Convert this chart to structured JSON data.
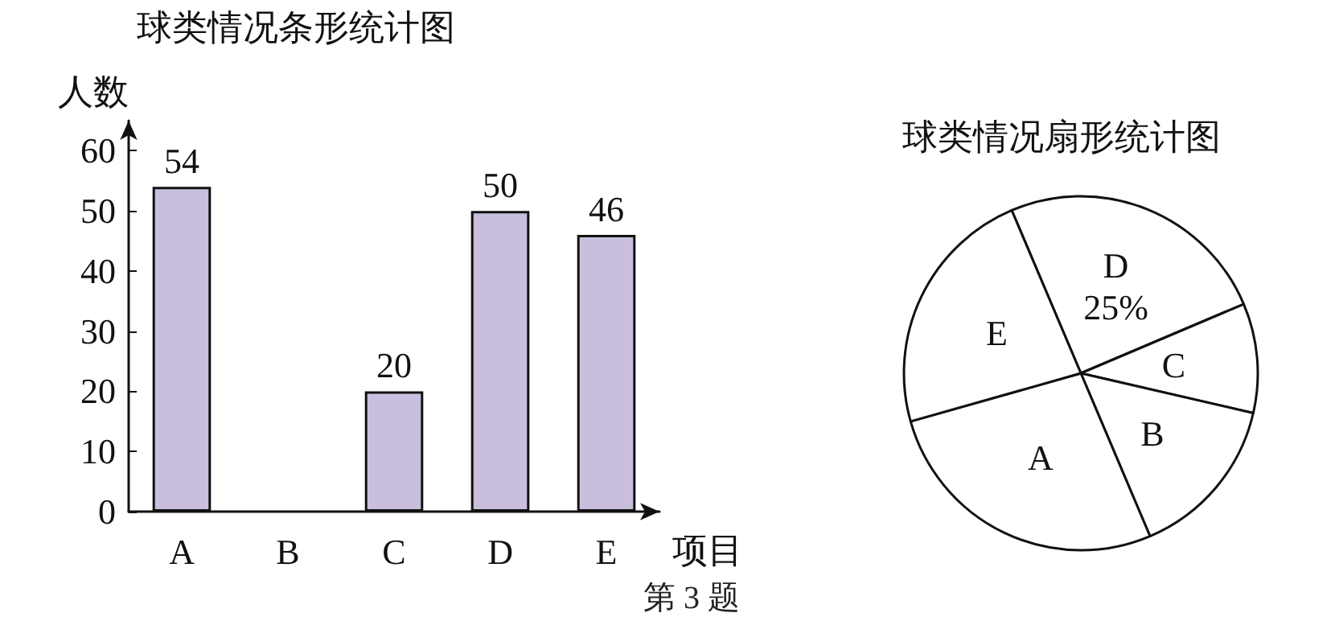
{
  "chart_data": [
    {
      "type": "bar",
      "title": "球类情况条形统计图",
      "xlabel": "项目",
      "ylabel": "人数",
      "categories": [
        "A",
        "B",
        "C",
        "D",
        "E"
      ],
      "values": [
        54,
        null,
        20,
        50,
        46
      ],
      "color": "#c9bfdc",
      "ylim": [
        0,
        65
      ],
      "yticks": [
        0,
        10,
        20,
        30,
        40,
        50,
        60
      ],
      "data_labels": true,
      "grid": false,
      "annotations": [
        "第 3 题"
      ]
    },
    {
      "type": "pie",
      "title": "球类情况扇形统计图",
      "categories": [
        "D",
        "C",
        "B",
        "A",
        "E"
      ],
      "values": [
        25,
        10,
        15,
        27,
        23
      ],
      "colors": [
        "#ffffff",
        "#ffffff",
        "#ffffff",
        "#ffffff",
        "#ffffff"
      ],
      "value_labels": [
        "25%",
        null,
        null,
        null,
        null
      ]
    }
  ]
}
